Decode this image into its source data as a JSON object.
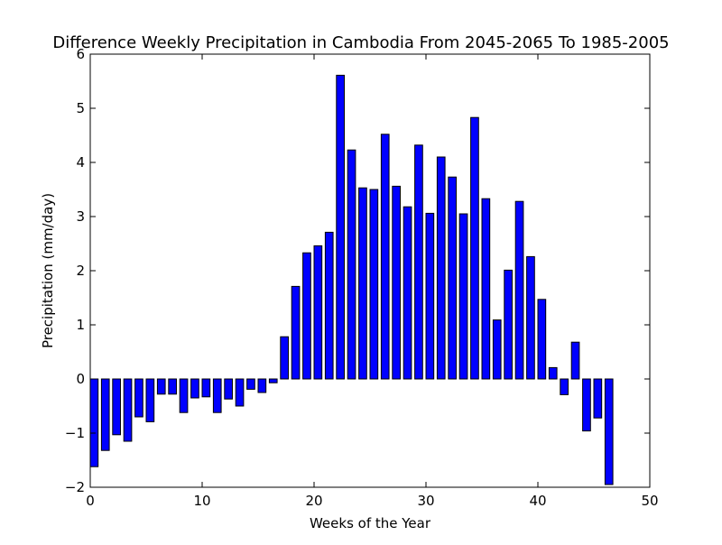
{
  "chart_data": {
    "type": "bar",
    "title": "Difference Weekly Precipitation in Cambodia From 2045-2065 To 1985-2005",
    "xlabel": "Weeks of the Year",
    "ylabel": "Precipitation (mm/day)",
    "xlim": [
      0,
      50
    ],
    "ylim": [
      -2,
      6
    ],
    "xticks": [
      0,
      10,
      20,
      30,
      40,
      50
    ],
    "xtick_labels": [
      "0",
      "10",
      "20",
      "30",
      "40",
      "50"
    ],
    "yticks": [
      -2,
      -1,
      0,
      1,
      2,
      3,
      4,
      5,
      6
    ],
    "ytick_labels": [
      "−2",
      "−1",
      "0",
      "1",
      "2",
      "3",
      "4",
      "5",
      "6"
    ],
    "grid": false,
    "bar_color": "#0000ff",
    "bar_edge_color": "#000000",
    "bar_width": 0.7,
    "x": [
      0,
      1,
      2,
      3,
      4,
      5,
      6,
      7,
      8,
      9,
      10,
      11,
      12,
      13,
      14,
      15,
      16,
      17,
      18,
      19,
      20,
      21,
      22,
      23,
      24,
      25,
      26,
      27,
      28,
      29,
      30,
      31,
      32,
      33,
      34,
      35,
      36,
      37,
      38,
      39,
      40,
      41,
      42,
      43,
      44,
      45,
      46
    ],
    "values": [
      -1.62,
      -1.32,
      -1.03,
      -1.15,
      -0.7,
      -0.79,
      -0.28,
      -0.28,
      -0.62,
      -0.35,
      -0.33,
      -0.62,
      -0.37,
      -0.5,
      -0.19,
      -0.25,
      -0.07,
      0.78,
      1.71,
      2.33,
      2.46,
      2.71,
      5.61,
      4.23,
      3.53,
      3.5,
      4.52,
      3.56,
      3.18,
      4.32,
      3.06,
      4.1,
      3.73,
      3.05,
      4.83,
      3.33,
      1.09,
      2.01,
      3.28,
      2.26,
      1.47,
      0.21,
      -0.29,
      0.68,
      -0.96,
      -0.72,
      -1.95
    ]
  }
}
